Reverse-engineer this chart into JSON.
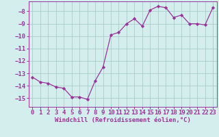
{
  "x": [
    0,
    1,
    2,
    3,
    4,
    5,
    6,
    7,
    8,
    9,
    10,
    11,
    12,
    13,
    14,
    15,
    16,
    17,
    18,
    19,
    20,
    21,
    22,
    23
  ],
  "y": [
    -13.3,
    -13.7,
    -13.8,
    -14.1,
    -14.2,
    -14.9,
    -14.9,
    -15.1,
    -13.6,
    -12.5,
    -9.9,
    -9.7,
    -9.0,
    -8.6,
    -9.2,
    -7.9,
    -7.6,
    -7.7,
    -8.5,
    -8.3,
    -9.0,
    -9.0,
    -9.1,
    -7.7
  ],
  "line_color": "#993399",
  "marker": "D",
  "marker_size": 2.2,
  "bg_color": "#d4eeed",
  "grid_color": "#aacccc",
  "xlabel": "Windchill (Refroidissement éolien,°C)",
  "xlabel_fontsize": 6.5,
  "tick_fontsize": 6.5,
  "xlim": [
    -0.5,
    23.5
  ],
  "ylim": [
    -15.7,
    -7.2
  ],
  "yticks": [
    -15,
    -14,
    -13,
    -12,
    -11,
    -10,
    -9,
    -8
  ],
  "xticks": [
    0,
    1,
    2,
    3,
    4,
    5,
    6,
    7,
    8,
    9,
    10,
    11,
    12,
    13,
    14,
    15,
    16,
    17,
    18,
    19,
    20,
    21,
    22,
    23
  ]
}
